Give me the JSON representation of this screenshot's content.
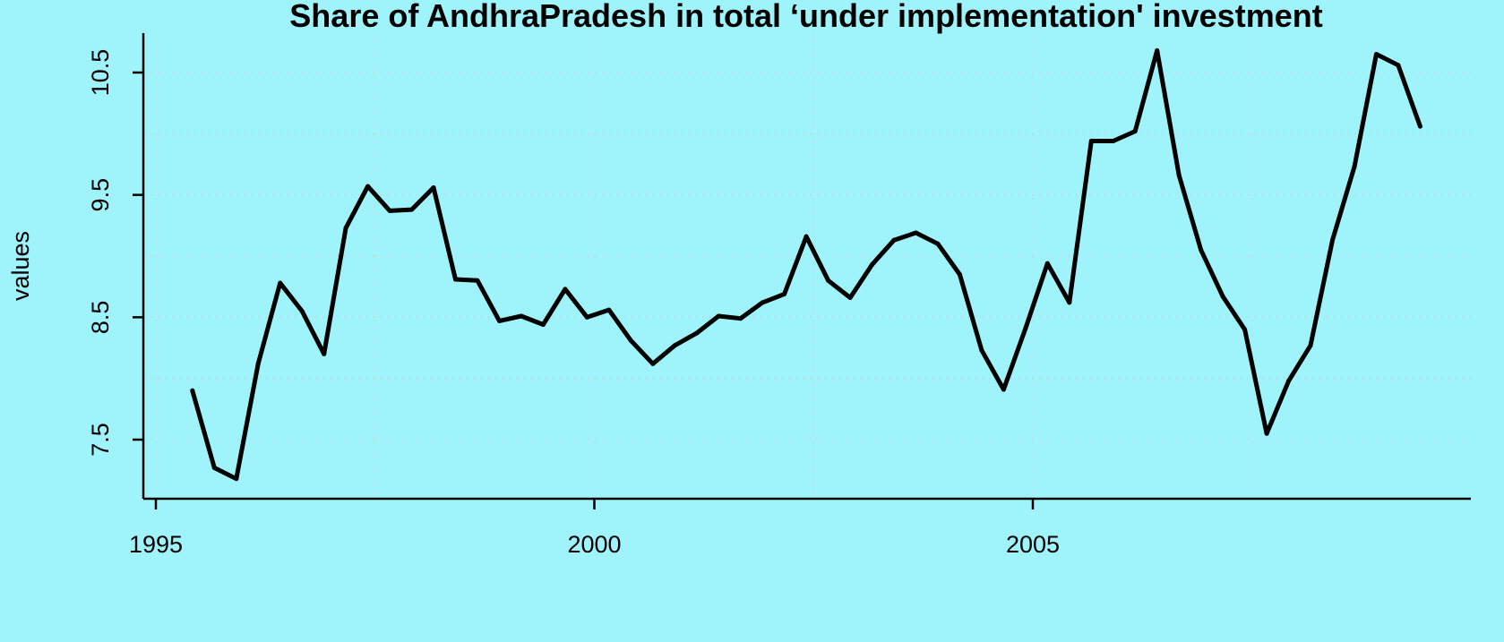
{
  "chart_data": {
    "type": "line",
    "title": "Share of AndhraPradesh in total ‘under implementation' investment",
    "xlabel": "",
    "ylabel": "values",
    "xlim": [
      1995.0,
      2009.1
    ],
    "ylim": [
      7.05,
      10.85
    ],
    "x_ticks": [
      1995,
      2000,
      2005
    ],
    "y_ticks": [
      7.5,
      8.5,
      9.5,
      10.5
    ],
    "grid": true,
    "background": "#9ff4fc",
    "line_color": "#000000",
    "series": [
      {
        "x_start": 1995.417,
        "x_step": 0.25,
        "values": [
          7.9,
          7.27,
          7.18,
          8.12,
          8.78,
          8.55,
          8.2,
          9.23,
          9.57,
          9.37,
          9.38,
          9.56,
          8.81,
          8.8,
          8.47,
          8.51,
          8.44,
          8.73,
          8.5,
          8.56,
          8.31,
          8.12,
          8.27,
          8.37,
          8.51,
          8.49,
          8.62,
          8.69,
          9.16,
          8.8,
          8.66,
          8.93,
          9.13,
          9.19,
          9.1,
          8.85,
          8.23,
          7.91,
          8.41,
          8.94,
          8.62,
          9.94,
          9.94,
          10.02,
          10.68,
          9.66,
          9.05,
          8.67,
          8.4,
          7.55,
          7.98,
          8.27,
          9.13,
          9.73,
          10.65,
          10.56,
          10.06
        ]
      }
    ]
  }
}
